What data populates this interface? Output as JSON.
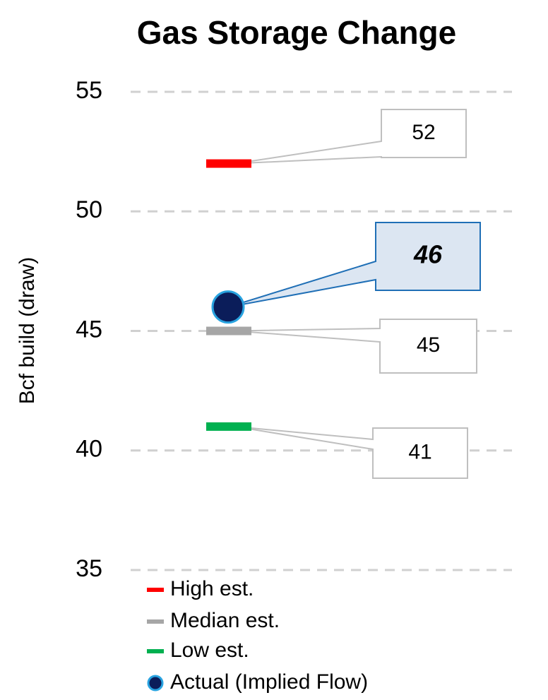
{
  "chart_data": {
    "type": "marker",
    "title": "Gas Storage Change",
    "y_label": "Bcf build (draw)",
    "ylim": [
      35,
      55
    ],
    "yticks": [
      35,
      40,
      45,
      50,
      55
    ],
    "grid": true,
    "legend": "bottom-left",
    "series": [
      {
        "name": "High est.",
        "color": "#ff0000",
        "marker": "dash",
        "values": [
          52
        ]
      },
      {
        "name": "Median est.",
        "color": "#a6a6a6",
        "marker": "dash",
        "values": [
          45
        ]
      },
      {
        "name": "Low est.",
        "color": "#00b050",
        "marker": "dash",
        "values": [
          41
        ]
      },
      {
        "name": "Actual (Implied Flow)",
        "color": "#0b1d5a",
        "marker": "circle",
        "values": [
          46
        ]
      }
    ]
  }
}
